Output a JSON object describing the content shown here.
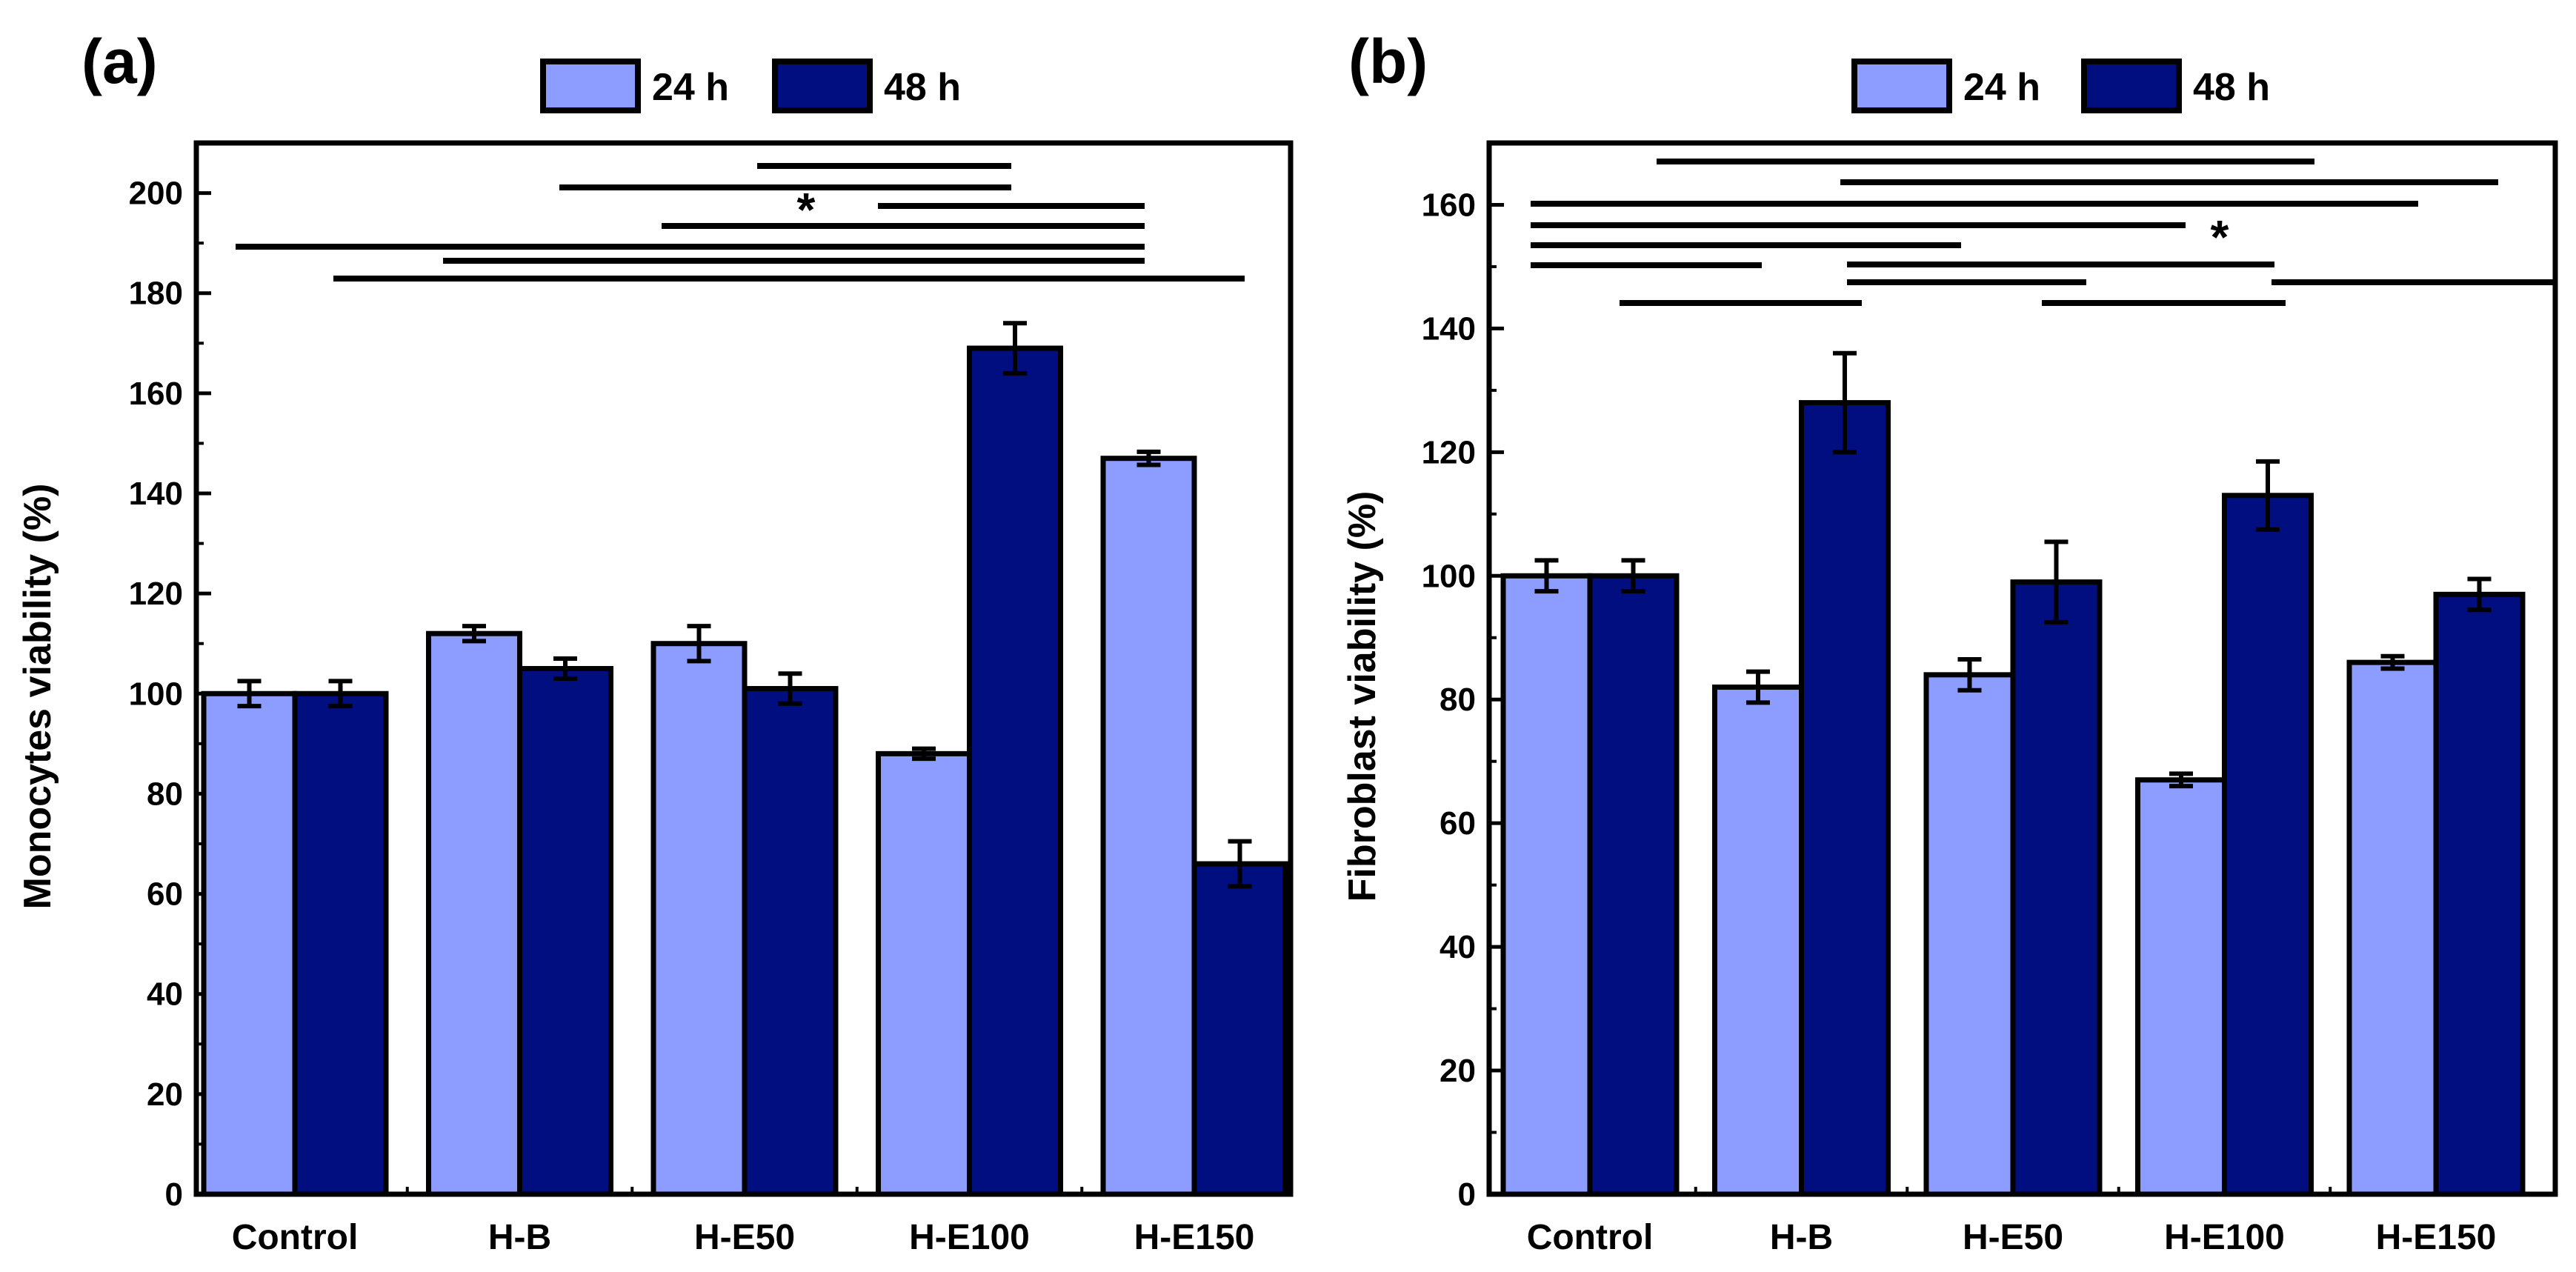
{
  "chart_data": [
    {
      "type": "bar",
      "panel_label": "a",
      "ylabel": "Monocytes viability (%)",
      "ylim": [
        0,
        210
      ],
      "yticks": [
        0,
        20,
        40,
        60,
        80,
        100,
        120,
        140,
        160,
        180,
        200
      ],
      "categories": [
        "Control",
        "H-B",
        "H-E50",
        "H-E100",
        "H-E150"
      ],
      "series": [
        {
          "name": "24 h",
          "color": "#8c9cff",
          "values": [
            100,
            112,
            110,
            88,
            147
          ],
          "errors": [
            2.5,
            1.5,
            3.5,
            1,
            1.3
          ]
        },
        {
          "name": "48 h",
          "color": "#000e80",
          "values": [
            100,
            105,
            101,
            169,
            66
          ],
          "errors": [
            2.5,
            2,
            3,
            5,
            4.5
          ]
        }
      ],
      "legend": [
        "24 h",
        "48 h"
      ],
      "legend_position": "top-center",
      "significance": {
        "label": "*",
        "comparisons": [
          [
            "H-E50 48 h",
            "H-E100 48 h"
          ],
          [
            "H-B 48 h",
            "H-E100 48 h"
          ],
          [
            "H-E100 24 h",
            "H-E150 24 h"
          ],
          [
            "H-E50 24 h",
            "H-E150 24 h"
          ],
          [
            "Control 24 h",
            "H-E150 24 h"
          ],
          [
            "H-B 24 h",
            "H-E150 24 h"
          ],
          [
            "Control 48 h",
            "H-E150 48 h"
          ]
        ]
      }
    },
    {
      "type": "bar",
      "panel_label": "b",
      "ylabel": "Fibroblast viability (%)",
      "ylim": [
        0,
        170
      ],
      "yticks": [
        0,
        20,
        40,
        60,
        80,
        100,
        120,
        140,
        160
      ],
      "categories": [
        "Control",
        "H-B",
        "H-E50",
        "H-E100",
        "H-E150"
      ],
      "series": [
        {
          "name": "24 h",
          "color": "#8c9cff",
          "values": [
            100,
            82,
            84,
            67,
            86
          ],
          "errors": [
            2.5,
            2.5,
            2.5,
            1,
            1
          ]
        },
        {
          "name": "48 h",
          "color": "#000e80",
          "values": [
            100,
            128,
            99,
            113,
            97
          ],
          "errors": [
            2.5,
            8,
            6.5,
            5.5,
            2.5
          ]
        }
      ],
      "legend": [
        "24 h",
        "48 h"
      ],
      "legend_position": "top-center",
      "significance": {
        "label": "*",
        "comparisons": [
          [
            "Control 48 h",
            "H-E100 48 h"
          ],
          [
            "H-B 48 h",
            "H-E150 48 h"
          ],
          [
            "Control 24 h",
            "H-E100 48 h"
          ],
          [
            "Control 24 h",
            "H-E100 24 h"
          ],
          [
            "Control 24 h",
            "H-E50 24 h"
          ],
          [
            "Control 24 h",
            "H-B 24 h"
          ],
          [
            "H-B 48 h",
            "H-E100 24 h"
          ],
          [
            "H-B 48 h",
            "H-E50 24 h"
          ],
          [
            "H-E100 24 h",
            "H-E150 48 h"
          ],
          [
            "Control 48 h",
            "H-B 48 h"
          ],
          [
            "H-E50 24 h",
            "H-E100 24 h"
          ]
        ]
      }
    }
  ]
}
